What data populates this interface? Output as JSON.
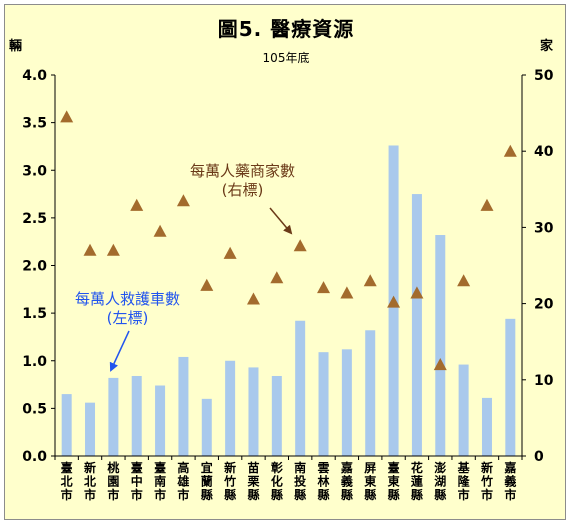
{
  "title": "圖5. 醫療資源",
  "subtitle": "105年底",
  "left_unit": "輛",
  "right_unit": "家",
  "annotations": {
    "right_series": [
      "每萬人藥商家數",
      "(右標)"
    ],
    "left_series": [
      "每萬人救護車數",
      "(左標)"
    ]
  },
  "colors": {
    "background": "#ffffcc",
    "bars": "#a9c9ec",
    "markers": "#a36b2d",
    "right_annotation": "#6b3a18",
    "left_annotation": "#2255ee"
  },
  "chart_data": {
    "type": "bar",
    "categories": [
      "臺北市",
      "新北市",
      "桃園市",
      "臺中市",
      "臺南市",
      "高雄市",
      "宜蘭縣",
      "新竹縣",
      "苗栗縣",
      "彰化縣",
      "南投縣",
      "雲林縣",
      "嘉義縣",
      "屏東縣",
      "臺東縣",
      "花蓮縣",
      "澎湖縣",
      "基隆市",
      "新竹市",
      "嘉義市"
    ],
    "series": [
      {
        "name": "每萬人救護車數",
        "axis": "left",
        "render": "bar",
        "values": [
          0.65,
          0.56,
          0.82,
          0.84,
          0.74,
          1.04,
          0.6,
          1.0,
          0.93,
          0.84,
          1.42,
          1.09,
          1.12,
          1.32,
          3.26,
          2.75,
          2.32,
          0.96,
          0.61,
          1.44
        ]
      },
      {
        "name": "每萬人藥商家數",
        "axis": "right",
        "render": "triangle",
        "values": [
          44.5,
          27.0,
          27.0,
          32.9,
          29.5,
          33.5,
          22.4,
          26.6,
          20.6,
          23.4,
          27.6,
          22.1,
          21.4,
          23.0,
          20.2,
          21.4,
          12.0,
          23.0,
          32.9,
          40.0
        ]
      }
    ],
    "y_left": {
      "ylim": [
        0,
        4
      ],
      "ticks": [
        "0.0",
        "0.5",
        "1.0",
        "1.5",
        "2.0",
        "2.5",
        "3.0",
        "3.5",
        "4.0"
      ]
    },
    "y_right": {
      "ylim": [
        0,
        50
      ],
      "ticks": [
        "0",
        "10",
        "20",
        "30",
        "40",
        "50"
      ]
    },
    "grid": false
  }
}
